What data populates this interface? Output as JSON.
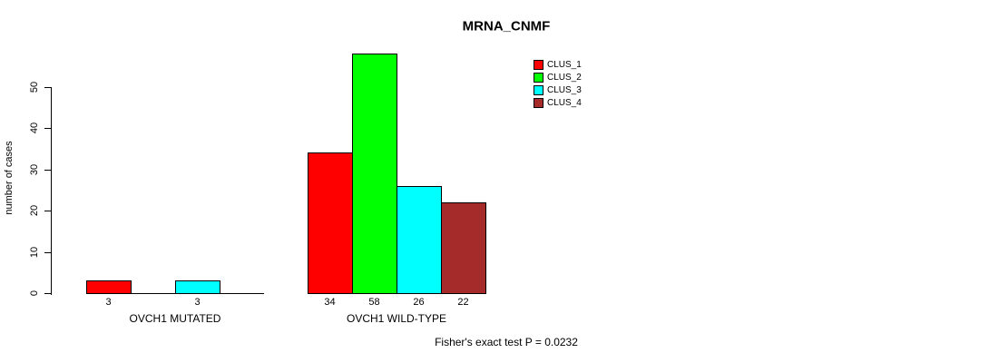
{
  "chart_data": {
    "type": "bar",
    "title": "MRNA_CNMF",
    "ylabel": "number of cases",
    "xlabel": "",
    "categories": [
      "OVCH1 MUTATED",
      "OVCH1 WILD-TYPE"
    ],
    "series": [
      {
        "name": "CLUS_1",
        "color": "#FF0000",
        "values": [
          3,
          34
        ]
      },
      {
        "name": "CLUS_2",
        "color": "#00FF00",
        "values": [
          0,
          58
        ]
      },
      {
        "name": "CLUS_3",
        "color": "#00FFFF",
        "values": [
          3,
          26
        ]
      },
      {
        "name": "CLUS_4",
        "color": "#A52A2A",
        "values": [
          0,
          22
        ]
      }
    ],
    "yticks": [
      0,
      10,
      20,
      30,
      40,
      50
    ],
    "ylim": [
      0,
      58
    ],
    "grid": false,
    "bar_value_labels_shown": true,
    "zero_value_bars_hidden": true,
    "legend_position": "top-right",
    "legend_entries": [
      "CLUS_1",
      "CLUS_2",
      "CLUS_3",
      "CLUS_4"
    ],
    "annotation": "Fisher's exact test P = 0.0232"
  }
}
